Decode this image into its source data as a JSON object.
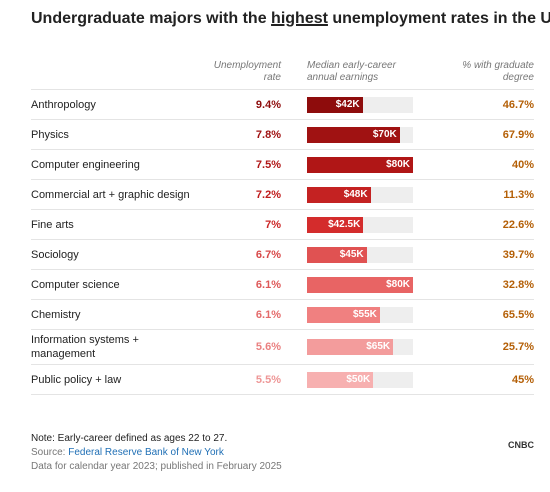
{
  "chart_data": {
    "type": "table-bar",
    "title": [
      "Undergraduate majors with the ",
      "highest",
      " unemployment rates in the U.S."
    ],
    "categories": [
      "Anthropology",
      "Physics",
      "Computer engineering",
      "Commercial art + graphic design",
      "Fine arts",
      "Sociology",
      "Computer science",
      "Chemistry",
      "Information systems + management",
      "Public policy + law"
    ],
    "series": [
      {
        "name": "Unemployment rate",
        "values": [
          9.4,
          7.8,
          7.5,
          7.2,
          7,
          6.7,
          6.1,
          6.1,
          5.6,
          5.5
        ],
        "value_labels": [
          "9.4%",
          "7.8%",
          "7.5%",
          "7.2%",
          "7%",
          "6.7%",
          "6.1%",
          "6.1%",
          "5.6%",
          "5.5%"
        ],
        "colors": [
          "#8e0c0c",
          "#a01212",
          "#b01616",
          "#c01c1c",
          "#cc2626",
          "#d84848",
          "#de5858",
          "#e46a6a",
          "#ea8080",
          "#ee9696"
        ]
      },
      {
        "name": "Median early-career annual earnings",
        "values": [
          42000,
          70000,
          80000,
          48000,
          42500,
          45000,
          80000,
          55000,
          65000,
          50000
        ],
        "value_labels": [
          "$42K",
          "$70K",
          "$80K",
          "$48K",
          "$42.5K",
          "$45K",
          "$80K",
          "$55K",
          "$65K",
          "$50K"
        ],
        "colors": [
          "#8e0c0c",
          "#a01212",
          "#b01616",
          "#c42222",
          "#d42c2c",
          "#e05252",
          "#e86464",
          "#f08080",
          "#f39c9c",
          "#f7b0b0"
        ]
      },
      {
        "name": "% with graduate degree",
        "values": [
          46.7,
          67.9,
          40,
          11.3,
          22.6,
          39.7,
          32.8,
          65.5,
          25.7,
          45
        ],
        "value_labels": [
          "46.7%",
          "67.9%",
          "40%",
          "11.3%",
          "22.6%",
          "39.7%",
          "32.8%",
          "65.5%",
          "25.7%",
          "45%"
        ],
        "color": "#b45f06"
      }
    ],
    "xlim": [
      0,
      80000
    ],
    "note": "Note: Early-career defined as ages 22 to 27.",
    "source": [
      "Source: ",
      "Federal Reserve Bank of New York"
    ],
    "footnote": "Data for calendar year 2023; published in February 2025",
    "logo": "CNBC"
  }
}
